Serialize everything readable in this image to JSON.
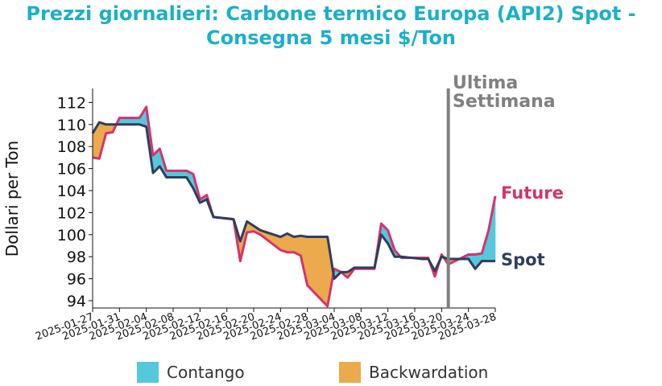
{
  "chart_data": {
    "type": "line",
    "title_line1": "Prezzi giornalieri: Carbone termico Europa (API2) Spot -",
    "title_line2": "Consegna 5 mesi $/Ton",
    "ylabel": "Dollari per Ton",
    "xlabel": "",
    "ylim": [
      93.5,
      113
    ],
    "yticks": [
      94,
      96,
      98,
      100,
      102,
      104,
      106,
      108,
      110,
      112
    ],
    "xticks": [
      "2025-01-27",
      "2025-01-31",
      "2025-02-04",
      "2025-02-08",
      "2025-02-12",
      "2025-02-16",
      "2025-02-20",
      "2025-02-24",
      "2025-02-28",
      "2025-03-04",
      "2025-03-08",
      "2025-03-12",
      "2025-03-16",
      "2025-03-20",
      "2025-03-24",
      "2025-03-28"
    ],
    "x": [
      "2025-01-27",
      "2025-01-28",
      "2025-01-29",
      "2025-01-30",
      "2025-01-31",
      "2025-02-03",
      "2025-02-04",
      "2025-02-05",
      "2025-02-06",
      "2025-02-07",
      "2025-02-10",
      "2025-02-11",
      "2025-02-12",
      "2025-02-13",
      "2025-02-14",
      "2025-02-17",
      "2025-02-18",
      "2025-02-19",
      "2025-02-20",
      "2025-02-21",
      "2025-02-24",
      "2025-02-25",
      "2025-02-26",
      "2025-02-27",
      "2025-02-28",
      "2025-03-03",
      "2025-03-04",
      "2025-03-05",
      "2025-03-06",
      "2025-03-07",
      "2025-03-10",
      "2025-03-11",
      "2025-03-12",
      "2025-03-13",
      "2025-03-14",
      "2025-03-17",
      "2025-03-18",
      "2025-03-19",
      "2025-03-20",
      "2025-03-21",
      "2025-03-24",
      "2025-03-25",
      "2025-03-26",
      "2025-03-27",
      "2025-03-28"
    ],
    "series": [
      {
        "name": "Spot",
        "color": "#2d3e5e",
        "values": [
          109.2,
          110.2,
          110.0,
          110.0,
          110.0,
          110.0,
          109.8,
          105.6,
          106.2,
          105.2,
          105.2,
          104.2,
          102.9,
          103.2,
          101.6,
          101.4,
          99.4,
          101.2,
          100.8,
          100.4,
          99.8,
          100.1,
          99.8,
          99.9,
          99.8,
          99.8,
          96.0,
          96.6,
          96.6,
          97.0,
          97.0,
          100.0,
          99.2,
          98.0,
          98.0,
          97.8,
          97.8,
          96.7,
          98.0,
          97.8,
          97.8,
          96.9,
          97.6,
          97.6,
          97.6
        ]
      },
      {
        "name": "Future",
        "color": "#d6336c",
        "values": [
          107.0,
          106.9,
          109.2,
          109.3,
          110.6,
          110.6,
          111.6,
          107.2,
          107.8,
          105.8,
          105.8,
          105.5,
          103.2,
          103.6,
          101.6,
          101.4,
          97.6,
          100.2,
          100.3,
          100.0,
          98.6,
          98.4,
          98.4,
          98.1,
          95.4,
          93.5,
          96.9,
          96.6,
          96.1,
          96.9,
          96.9,
          101.0,
          100.4,
          98.6,
          97.9,
          97.9,
          97.9,
          96.2,
          98.2,
          97.3,
          98.2,
          98.2,
          98.3,
          100.4,
          103.5
        ]
      }
    ],
    "fills": [
      {
        "name": "Contango",
        "color": "#55c8dc"
      },
      {
        "name": "Backwardation",
        "color": "#ebaa4c"
      }
    ],
    "vline": {
      "x": "2025-03-21",
      "label_line1": "Ultima",
      "label_line2": "Settimana",
      "color": "#808080"
    },
    "end_labels": {
      "future": "Future",
      "spot": "Spot"
    },
    "legend_placement": "bottom",
    "grid": false
  }
}
